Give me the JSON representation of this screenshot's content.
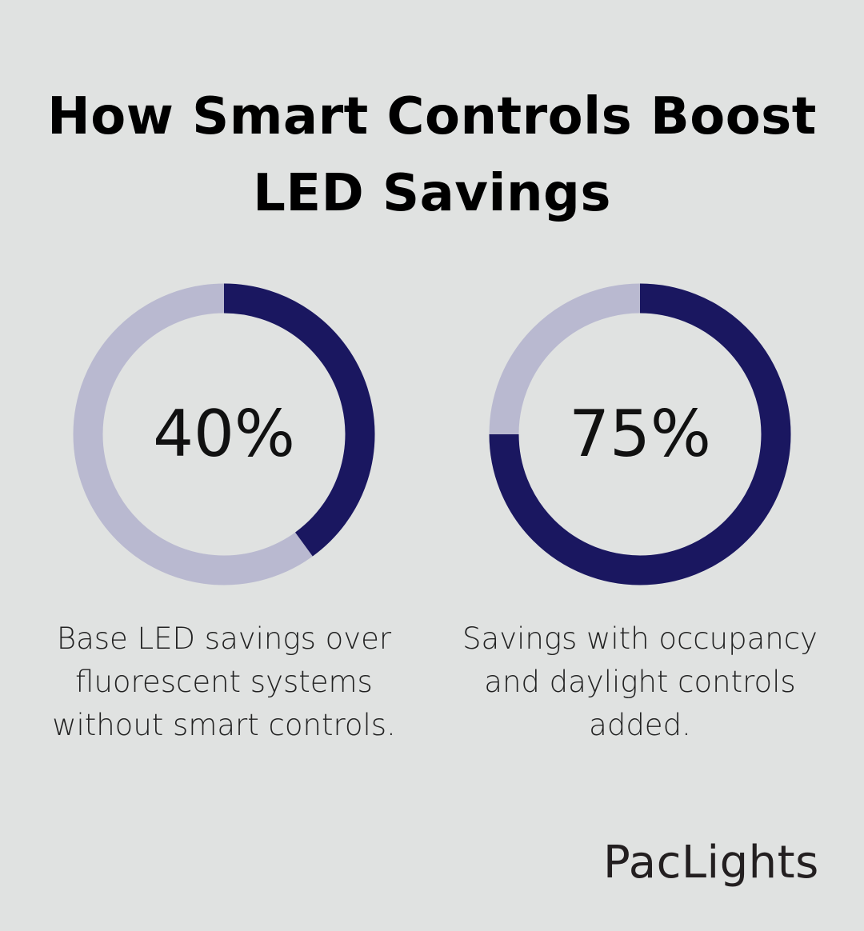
{
  "title": "How Smart Controls Boost LED Savings",
  "chart_data": [
    {
      "type": "pie",
      "variant": "donut",
      "value": 40,
      "label": "40%",
      "description": "Base LED savings over fluorescent systems without smart controls.",
      "max": 100
    },
    {
      "type": "pie",
      "variant": "donut",
      "value": 75,
      "label": "75%",
      "description": "Savings with occupancy and daylight controls added.",
      "max": 100
    }
  ],
  "colors": {
    "filled": "#1a1760",
    "remaining": "#b9b9d0",
    "background": "#e0e2e1"
  },
  "logo": "PacLights"
}
